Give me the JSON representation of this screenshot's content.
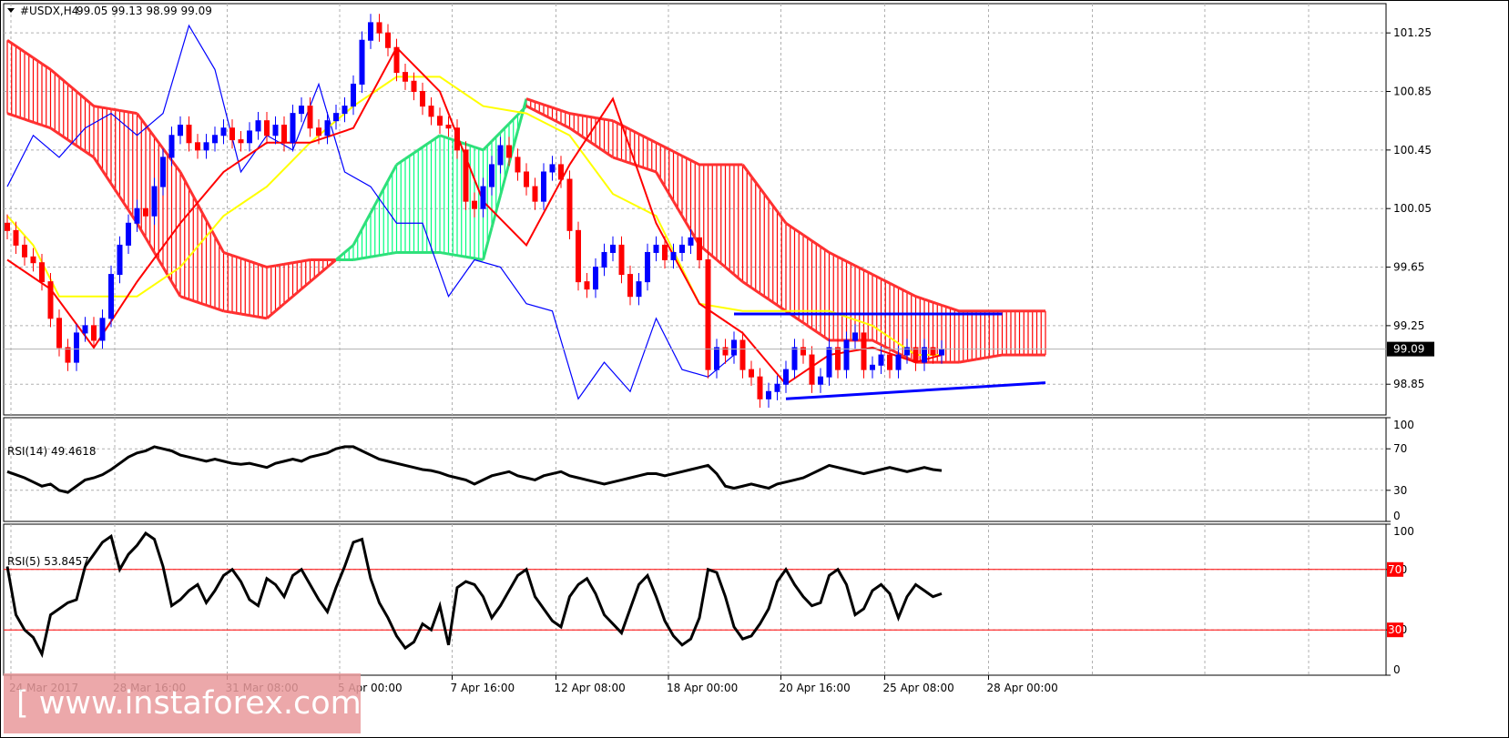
{
  "header": {
    "symbol": "#USDX,H4",
    "ohlc": "99.05 99.13 98.99 99.09"
  },
  "watermark": "[ www.instaforex.com ]",
  "colors": {
    "kumo_bear": "#ff0000",
    "kumo_bull": "#00ff7f",
    "tenkan": "#ff0000",
    "kijun": "#ffff00",
    "chikou": "#0000ff",
    "trendline": "#0000ff",
    "rsi_line": "#000000",
    "rsi_levels": "#ff0000",
    "bull_candle": "#0000ff",
    "bear_candle": "#ff0000"
  },
  "chart_data": [
    {
      "type": "candlestick",
      "panel": "price",
      "title": "#USDX,H4 99.05 99.13 98.99 99.09",
      "ylim": [
        98.64,
        101.45
      ],
      "y_ticks": [
        "101.25",
        "100.85",
        "100.45",
        "100.05",
        "99.65",
        "99.25",
        "98.85"
      ],
      "last_price": "99.09",
      "x_labels": [
        "24 Mar 2017",
        "28 Mar 16:00",
        "31 Mar 08:00",
        "5 Apr 00:00",
        "7 Apr 16:00",
        "12 Apr 08:00",
        "18 Apr 00:00",
        "20 Apr 16:00",
        "25 Apr 08:00",
        "28 Apr 00:00"
      ],
      "close": [
        99.9,
        99.8,
        99.72,
        99.68,
        99.55,
        99.3,
        99.1,
        99.0,
        99.2,
        99.25,
        99.15,
        99.3,
        99.6,
        99.8,
        99.95,
        100.05,
        100.0,
        100.2,
        100.4,
        100.55,
        100.62,
        100.5,
        100.45,
        100.5,
        100.55,
        100.6,
        100.52,
        100.5,
        100.58,
        100.65,
        100.55,
        100.62,
        100.5,
        100.7,
        100.75,
        100.6,
        100.55,
        100.65,
        100.7,
        100.75,
        100.9,
        101.2,
        101.32,
        101.25,
        101.15,
        100.98,
        100.92,
        100.85,
        100.75,
        100.68,
        100.62,
        100.6,
        100.45,
        100.1,
        100.05,
        100.2,
        100.35,
        100.48,
        100.4,
        100.3,
        100.2,
        100.1,
        100.3,
        100.35,
        100.25,
        99.9,
        99.55,
        99.5,
        99.65,
        99.75,
        99.8,
        99.6,
        99.45,
        99.55,
        99.75,
        99.8,
        99.7,
        99.75,
        99.8,
        99.85,
        99.7,
        98.95,
        99.1,
        99.05,
        99.15,
        98.95,
        98.9,
        98.75,
        98.8,
        98.85,
        98.95,
        99.1,
        99.05,
        98.85,
        98.9,
        99.1,
        98.95,
        99.15,
        99.2,
        98.95,
        98.98,
        99.05,
        98.95,
        99.05,
        99.1,
        99.0,
        99.1,
        99.05,
        99.09
      ],
      "series": [
        {
          "name": "Tenkan",
          "x": [
            0,
            5,
            10,
            15,
            20,
            25,
            30,
            35,
            40,
            45,
            50,
            55,
            60,
            65,
            70,
            75,
            80,
            85,
            90,
            95,
            100,
            105,
            108
          ],
          "y": [
            99.7,
            99.5,
            99.1,
            99.55,
            99.95,
            100.3,
            100.5,
            100.5,
            100.6,
            101.15,
            100.85,
            100.1,
            99.8,
            100.35,
            100.8,
            99.95,
            99.4,
            99.2,
            98.85,
            99.05,
            99.1,
            99.0,
            99.05
          ]
        },
        {
          "name": "Kijun",
          "x": [
            0,
            3,
            6,
            10,
            15,
            20,
            25,
            30,
            35,
            40,
            45,
            50,
            55,
            60,
            65,
            70,
            75,
            80,
            85,
            90,
            95,
            100,
            105,
            108
          ],
          "y": [
            100.0,
            99.8,
            99.45,
            99.45,
            99.45,
            99.65,
            100.0,
            100.2,
            100.5,
            100.75,
            100.95,
            100.95,
            100.75,
            100.7,
            100.55,
            100.15,
            100.0,
            99.4,
            99.35,
            99.35,
            99.35,
            99.25,
            99.05,
            99.05
          ]
        },
        {
          "name": "Chikou",
          "x": [
            0,
            3,
            6,
            9,
            12,
            15,
            18,
            21,
            24,
            27,
            30,
            33,
            36,
            39,
            42,
            45,
            48,
            51,
            54,
            57,
            60,
            63,
            66,
            69,
            72,
            75,
            78,
            81,
            84
          ],
          "y": [
            100.2,
            100.55,
            100.4,
            100.6,
            100.7,
            100.55,
            100.7,
            101.3,
            101.0,
            100.3,
            100.55,
            100.45,
            100.9,
            100.3,
            100.2,
            99.95,
            99.95,
            99.45,
            99.7,
            99.65,
            99.4,
            99.35,
            98.75,
            99.0,
            98.8,
            99.3,
            98.95,
            98.9,
            99.05
          ]
        },
        {
          "name": "SenkouA",
          "x": [
            0,
            5,
            10,
            15,
            20,
            25,
            30,
            35,
            40,
            45,
            50,
            55,
            60,
            65,
            70,
            75,
            80,
            85,
            90,
            95,
            100,
            105,
            110,
            115,
            120
          ],
          "y": [
            100.7,
            100.6,
            100.4,
            99.95,
            99.45,
            99.35,
            99.3,
            99.55,
            99.8,
            100.35,
            100.55,
            100.45,
            100.75,
            100.6,
            100.4,
            100.3,
            99.8,
            99.55,
            99.35,
            99.15,
            99.15,
            99.0,
            99.0,
            99.05,
            99.05
          ]
        },
        {
          "name": "SenkouB",
          "x": [
            0,
            5,
            10,
            15,
            20,
            25,
            30,
            35,
            40,
            45,
            50,
            55,
            60,
            65,
            70,
            75,
            80,
            85,
            90,
            95,
            100,
            105,
            110,
            115,
            120
          ],
          "y": [
            101.2,
            101.0,
            100.75,
            100.7,
            100.3,
            99.75,
            99.65,
            99.7,
            99.7,
            99.75,
            99.75,
            99.7,
            100.8,
            100.7,
            100.65,
            100.5,
            100.35,
            100.35,
            99.95,
            99.75,
            99.6,
            99.45,
            99.35,
            99.35,
            99.35
          ]
        },
        {
          "name": "Resistance",
          "x": [
            84,
            115
          ],
          "y": [
            99.33,
            99.33
          ]
        },
        {
          "name": "Support",
          "x": [
            90,
            120
          ],
          "y": [
            98.75,
            98.86
          ]
        }
      ]
    },
    {
      "type": "line",
      "panel": "rsi14",
      "title": "RSI(14) 49.4618",
      "ylim": [
        0,
        100
      ],
      "y_ticks": [
        "100",
        "70",
        "30",
        "0"
      ],
      "values": [
        48,
        45,
        42,
        38,
        34,
        36,
        30,
        28,
        34,
        40,
        42,
        45,
        50,
        56,
        62,
        66,
        68,
        72,
        70,
        68,
        64,
        62,
        60,
        58,
        60,
        58,
        56,
        55,
        56,
        54,
        52,
        56,
        58,
        60,
        58,
        62,
        64,
        66,
        70,
        72,
        72,
        68,
        64,
        60,
        58,
        56,
        54,
        52,
        50,
        49,
        47,
        44,
        42,
        40,
        36,
        40,
        44,
        46,
        48,
        44,
        42,
        40,
        44,
        46,
        48,
        44,
        42,
        40,
        38,
        36,
        38,
        40,
        42,
        44,
        46,
        46,
        44,
        46,
        48,
        50,
        52,
        54,
        46,
        34,
        32,
        34,
        36,
        34,
        32,
        36,
        38,
        40,
        42,
        46,
        50,
        54,
        52,
        50,
        48,
        46,
        48,
        50,
        52,
        50,
        48,
        50,
        52,
        50,
        49
      ],
      "levels": [
        70,
        30
      ]
    },
    {
      "type": "line",
      "panel": "rsi5",
      "title": "RSI(5) 53.8457",
      "ylim": [
        0,
        100
      ],
      "y_ticks": [
        "100",
        "70",
        "30",
        "0"
      ],
      "level_labels": [
        "70",
        "30"
      ],
      "values": [
        72,
        40,
        30,
        25,
        14,
        40,
        44,
        48,
        50,
        72,
        80,
        88,
        92,
        70,
        80,
        86,
        94,
        90,
        72,
        46,
        50,
        56,
        60,
        48,
        56,
        66,
        70,
        62,
        50,
        46,
        64,
        60,
        52,
        66,
        70,
        60,
        50,
        42,
        58,
        72,
        88,
        90,
        64,
        48,
        38,
        26,
        18,
        22,
        34,
        30,
        46,
        20,
        58,
        62,
        60,
        52,
        38,
        46,
        56,
        66,
        70,
        52,
        44,
        36,
        32,
        52,
        60,
        64,
        54,
        40,
        34,
        28,
        44,
        60,
        66,
        52,
        36,
        26,
        20,
        24,
        38,
        70,
        68,
        52,
        32,
        24,
        26,
        34,
        44,
        62,
        70,
        60,
        52,
        46,
        48,
        66,
        70,
        60,
        40,
        44,
        56,
        60,
        54,
        38,
        52,
        60,
        56,
        52,
        54
      ],
      "levels": [
        70,
        30
      ]
    }
  ]
}
